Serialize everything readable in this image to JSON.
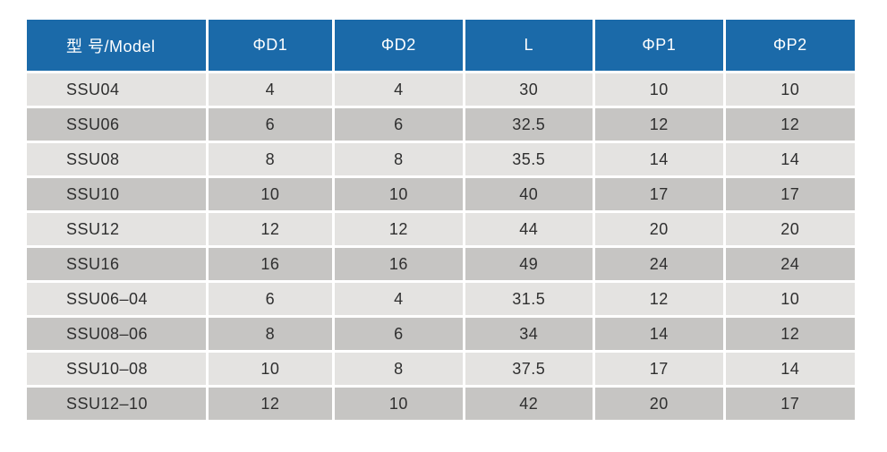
{
  "table": {
    "columns": [
      "型 号/Model",
      "ΦD1",
      "ΦD2",
      "L",
      "ΦP1",
      "ΦP2"
    ],
    "rows": [
      [
        "SSU04",
        "4",
        "4",
        "30",
        "10",
        "10"
      ],
      [
        "SSU06",
        "6",
        "6",
        "32.5",
        "12",
        "12"
      ],
      [
        "SSU08",
        "8",
        "8",
        "35.5",
        "14",
        "14"
      ],
      [
        "SSU10",
        "10",
        "10",
        "40",
        "17",
        "17"
      ],
      [
        "SSU12",
        "12",
        "12",
        "44",
        "20",
        "20"
      ],
      [
        "SSU16",
        "16",
        "16",
        "49",
        "24",
        "24"
      ],
      [
        "SSU06–04",
        "6",
        "4",
        "31.5",
        "12",
        "10"
      ],
      [
        "SSU08–06",
        "8",
        "6",
        "34",
        "14",
        "12"
      ],
      [
        "SSU10–08",
        "10",
        "8",
        "37.5",
        "17",
        "14"
      ],
      [
        "SSU12–10",
        "12",
        "10",
        "42",
        "20",
        "17"
      ]
    ]
  },
  "colors": {
    "header_bg": "#1b6aa9",
    "header_text": "#ffffff",
    "row_light": "#e4e3e1",
    "row_dark": "#c6c5c3",
    "cell_text": "#2f2f2f",
    "page_bg": "#ffffff"
  }
}
